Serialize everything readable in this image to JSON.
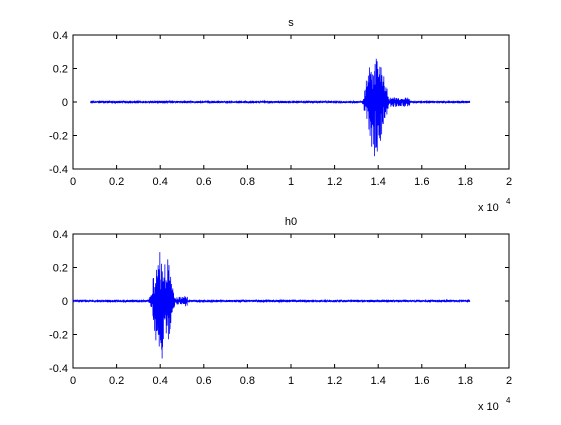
{
  "chart_data": [
    {
      "type": "line",
      "title": "s",
      "xlabel": "",
      "ylabel": "",
      "xlim": [
        0,
        20000
      ],
      "ylim": [
        -0.4,
        0.4
      ],
      "x_exponent_label": {
        "base": "x 10",
        "exp": "4"
      },
      "x_tick_values": [
        0,
        2000,
        4000,
        6000,
        8000,
        10000,
        12000,
        14000,
        16000,
        18000,
        20000
      ],
      "x_tick_labels": [
        "0",
        "0.2",
        "0.4",
        "0.6",
        "0.8",
        "1",
        "1.2",
        "1.4",
        "1.6",
        "1.8",
        "2"
      ],
      "y_tick_values": [
        -0.4,
        -0.2,
        0,
        0.2,
        0.4
      ],
      "y_tick_labels": [
        "-0.4",
        "-0.2",
        "0",
        "0.2",
        "0.4"
      ],
      "grid": false,
      "line_color": "#0000ff",
      "series": [
        {
          "x_start": 800,
          "x_end": 18200,
          "baseline_noise": 0.008,
          "bursts": [
            {
              "center": 13900,
              "width": 1300,
              "amplitude": 0.33,
              "decay_tail": 900,
              "tail_amplitude": 0.03
            }
          ]
        }
      ]
    },
    {
      "type": "line",
      "title": "h0",
      "xlabel": "",
      "ylabel": "",
      "xlim": [
        0,
        20000
      ],
      "ylim": [
        -0.4,
        0.4
      ],
      "x_exponent_label": {
        "base": "x 10",
        "exp": "4"
      },
      "x_tick_values": [
        0,
        2000,
        4000,
        6000,
        8000,
        10000,
        12000,
        14000,
        16000,
        18000,
        20000
      ],
      "x_tick_labels": [
        "0",
        "0.2",
        "0.4",
        "0.6",
        "0.8",
        "1",
        "1.2",
        "1.4",
        "1.6",
        "1.8",
        "2"
      ],
      "y_tick_values": [
        -0.4,
        -0.2,
        0,
        0.2,
        0.4
      ],
      "y_tick_labels": [
        "-0.4",
        "-0.2",
        "0",
        "0.2",
        "0.4"
      ],
      "grid": false,
      "line_color": "#0000ff",
      "series": [
        {
          "x_start": 0,
          "x_end": 18200,
          "baseline_noise": 0.008,
          "bursts": [
            {
              "center": 4100,
              "width": 1300,
              "amplitude": 0.33,
              "decay_tail": 500,
              "tail_amplitude": 0.03
            }
          ]
        }
      ]
    }
  ]
}
